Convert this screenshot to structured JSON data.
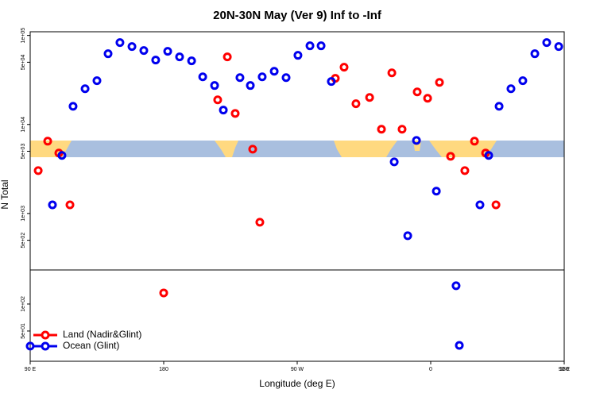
{
  "chart_data": [
    {
      "type": "scatter",
      "title": "20N-30N May (Ver 9)   Inf to -Inf",
      "y_label": "N Total",
      "log_scale": true,
      "xlim": [
        90,
        450
      ],
      "ylim": [
        232,
        110000
      ],
      "yticks": [
        {
          "value": 100000,
          "label": "1e+05"
        },
        {
          "value": 50000,
          "label": "5e+04"
        },
        {
          "value": 10000,
          "label": "1e+04"
        },
        {
          "value": 5000,
          "label": "5e+03"
        },
        {
          "value": 1000,
          "label": "1e+03"
        },
        {
          "value": 500,
          "label": "5e+02"
        }
      ],
      "series": [
        {
          "color": "#ff0000",
          "x": [
            95.4,
            101.8,
            109.3,
            116.8,
            216.4,
            222.9,
            228.2,
            240,
            244.8,
            295.7,
            301.6,
            309.6,
            318.8,
            326.8,
            333.8,
            340.7,
            350.9,
            357.9,
            365.9,
            373.4,
            383,
            389.5,
            397,
            404
          ],
          "values": [
            3030,
            6490,
            4770,
            1250,
            18900,
            57400,
            13300,
            5280,
            798,
            33000,
            44000,
            17100,
            20100,
            8840,
            38000,
            8840,
            23200,
            19700,
            29700,
            4390,
            3030,
            6490,
            4770,
            1250
          ]
        },
        {
          "color": "#0000ee",
          "x": [
            105,
            111.4,
            118.9,
            127,
            135,
            142.5,
            150.5,
            158.6,
            166.6,
            174.6,
            182.7,
            190.7,
            198.8,
            206.3,
            214.3,
            220.2,
            231.4,
            238.4,
            246.4,
            254.5,
            262.5,
            270.5,
            278.6,
            286.1,
            293,
            335.4,
            344.5,
            350.4,
            363.8,
            393.2,
            399.1,
            406.1,
            414.1,
            422.1,
            430.2,
            438.2,
            446.3
          ],
          "values": [
            1250,
            4490,
            16000,
            25200,
            31000,
            62300,
            83100,
            75000,
            67700,
            52900,
            66300,
            57400,
            51800,
            34300,
            27400,
            14500,
            33600,
            27400,
            34300,
            39600,
            33600,
            59800,
            76500,
            76500,
            30400,
            3800,
            562,
            6620,
            1780,
            1250,
            4490,
            16000,
            25200,
            31000,
            62300,
            83100,
            75000
          ]
        }
      ]
    },
    {
      "type": "scatter",
      "x_label": "Longitude (deg E)",
      "log_scale": true,
      "xlim": [
        90,
        450
      ],
      "ylim": [
        23,
        240
      ],
      "xticks": [
        {
          "value": 90,
          "label": "90 E"
        },
        180,
        {
          "value": 270,
          "label": "90 W"
        },
        {
          "value": 360,
          "label": "0"
        },
        {
          "value": 450,
          "label": "90 E"
        },
        {
          "value": 540,
          "label": "180"
        }
      ],
      "yticks": [
        {
          "value": 100,
          "label": "1e+02"
        },
        {
          "value": 50,
          "label": "5e+01"
        }
      ],
      "legend": "bottom-left",
      "series": [
        {
          "name": "Land (Nadir&Glint)",
          "color": "#ff0000",
          "x": [
            180
          ],
          "values": [
            133
          ]
        },
        {
          "name": "Ocean (Glint)",
          "color": "#0000ee",
          "x": [
            90,
            377.1,
            379.3
          ],
          "values": [
            34,
            160,
            34.6
          ]
        }
      ]
    }
  ]
}
